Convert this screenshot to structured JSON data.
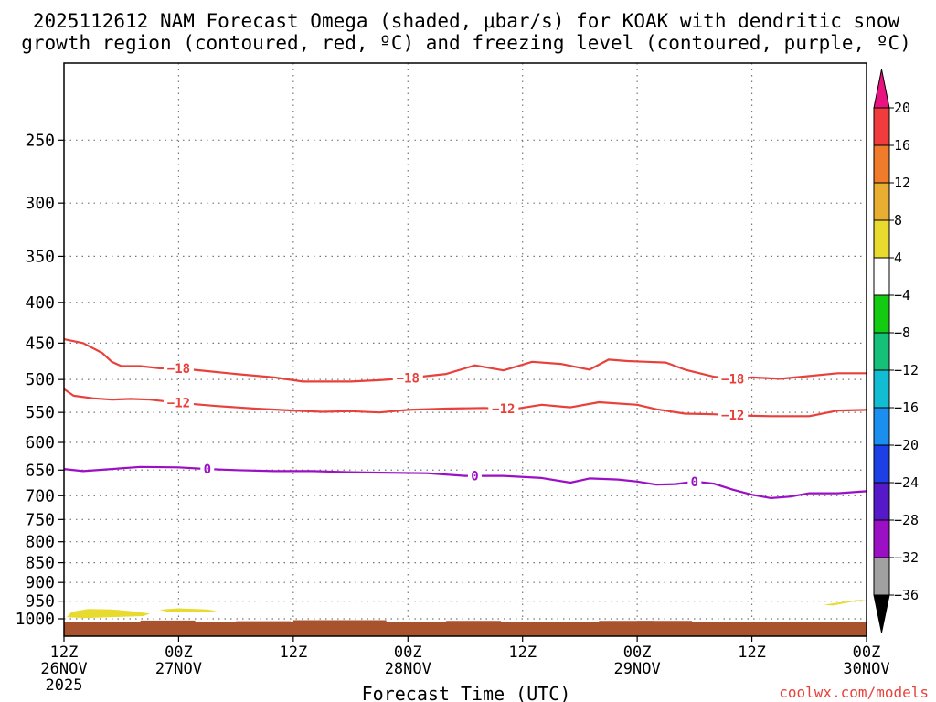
{
  "chart_data": {
    "type": "time-height-contour",
    "title_lines": [
      "2025112612 NAM Forecast Omega (shaded, μbar/s) for KOAK with dendritic snow",
      "growth region (contoured, red, ºC) and freezing level (contoured, purple, ºC)"
    ],
    "xlabel": "Forecast Time (UTC)",
    "credit": "coolwx.com/models",
    "time_range_hours": [
      0,
      84
    ],
    "pressure_range_hpa": [
      1040,
      200
    ],
    "y_ticks": [
      250,
      300,
      350,
      400,
      450,
      500,
      550,
      600,
      650,
      700,
      750,
      800,
      850,
      900,
      950,
      1000
    ],
    "x_ticks": [
      {
        "hour": 0,
        "label": "12Z",
        "date": "26NOV",
        "year": "2025"
      },
      {
        "hour": 12,
        "label": "00Z",
        "date": "27NOV"
      },
      {
        "hour": 24,
        "label": "12Z"
      },
      {
        "hour": 36,
        "label": "00Z",
        "date": "28NOV"
      },
      {
        "hour": 48,
        "label": "12Z"
      },
      {
        "hour": 60,
        "label": "00Z",
        "date": "29NOV"
      },
      {
        "hour": 72,
        "label": "12Z"
      },
      {
        "hour": 84,
        "label": "00Z",
        "date": "30NOV"
      }
    ],
    "contours": [
      {
        "name": "-18",
        "label": "−18",
        "color": "#e8413b",
        "series": "dendritic snow growth region",
        "label_at_hours": [
          12,
          36,
          70
        ],
        "points": [
          [
            0,
            445
          ],
          [
            2,
            450
          ],
          [
            4,
            463
          ],
          [
            5,
            475
          ],
          [
            6,
            481
          ],
          [
            8,
            481
          ],
          [
            10,
            484
          ],
          [
            12,
            484
          ],
          [
            15,
            488
          ],
          [
            18,
            492
          ],
          [
            22,
            497
          ],
          [
            25,
            503
          ],
          [
            28,
            503
          ],
          [
            30,
            503
          ],
          [
            33,
            501
          ],
          [
            36,
            498
          ],
          [
            40,
            492
          ],
          [
            43,
            480
          ],
          [
            46,
            487
          ],
          [
            49,
            475
          ],
          [
            52,
            478
          ],
          [
            55,
            486
          ],
          [
            57,
            472
          ],
          [
            59,
            474
          ],
          [
            61,
            475
          ],
          [
            63,
            476
          ],
          [
            65,
            486
          ],
          [
            68,
            496
          ],
          [
            70,
            499
          ],
          [
            72,
            497
          ],
          [
            75,
            499
          ],
          [
            78,
            495
          ],
          [
            81,
            491
          ],
          [
            84,
            491
          ]
        ]
      },
      {
        "name": "-12",
        "label": "−12",
        "color": "#e8413b",
        "series": "dendritic snow growth region",
        "label_at_hours": [
          12,
          46,
          70
        ],
        "points": [
          [
            0,
            514
          ],
          [
            1,
            524
          ],
          [
            3,
            528
          ],
          [
            5,
            530
          ],
          [
            7,
            529
          ],
          [
            9,
            530
          ],
          [
            12,
            535
          ],
          [
            16,
            540
          ],
          [
            20,
            544
          ],
          [
            24,
            547
          ],
          [
            27,
            549
          ],
          [
            30,
            548
          ],
          [
            33,
            550
          ],
          [
            36,
            546
          ],
          [
            40,
            544
          ],
          [
            44,
            543
          ],
          [
            47,
            545
          ],
          [
            50,
            538
          ],
          [
            53,
            542
          ],
          [
            56,
            534
          ],
          [
            60,
            538
          ],
          [
            62,
            545
          ],
          [
            65,
            552
          ],
          [
            68,
            553
          ],
          [
            71,
            555
          ],
          [
            74,
            556
          ],
          [
            78,
            556
          ],
          [
            81,
            547
          ],
          [
            84,
            546
          ]
        ]
      },
      {
        "name": "0",
        "label": "0",
        "color": "#9b0fc5",
        "series": "freezing level",
        "label_at_hours": [
          15,
          43,
          66
        ],
        "points": [
          [
            0,
            648
          ],
          [
            2,
            652
          ],
          [
            5,
            648
          ],
          [
            8,
            644
          ],
          [
            12,
            645
          ],
          [
            15,
            648
          ],
          [
            18,
            650
          ],
          [
            22,
            652
          ],
          [
            26,
            652
          ],
          [
            30,
            654
          ],
          [
            34,
            655
          ],
          [
            38,
            656
          ],
          [
            42,
            661
          ],
          [
            46,
            661
          ],
          [
            50,
            665
          ],
          [
            53,
            674
          ],
          [
            55,
            666
          ],
          [
            58,
            668
          ],
          [
            60,
            672
          ],
          [
            62,
            678
          ],
          [
            64,
            677
          ],
          [
            66,
            672
          ],
          [
            68,
            676
          ],
          [
            70,
            688
          ],
          [
            72,
            698
          ],
          [
            74,
            705
          ],
          [
            76,
            702
          ],
          [
            78,
            695
          ],
          [
            81,
            695
          ],
          [
            84,
            691
          ]
        ]
      }
    ],
    "shaded_regions": [
      {
        "name": "omega 4-8 μbar/s",
        "color": "#e8db30",
        "blobs": [
          {
            "points": [
              [
                0.3,
                995
              ],
              [
                0.8,
                980
              ],
              [
                2.5,
                972
              ],
              [
                5,
                973
              ],
              [
                7,
                978
              ],
              [
                9,
                985
              ],
              [
                8.3,
                992
              ],
              [
                5,
                995
              ],
              [
                2,
                998
              ]
            ]
          },
          {
            "points": [
              [
                10,
                974
              ],
              [
                12,
                970
              ],
              [
                15,
                973
              ],
              [
                16,
                978
              ],
              [
                14,
                982
              ],
              [
                11,
                981
              ]
            ]
          },
          {
            "points": [
              [
                79.5,
                960
              ],
              [
                81,
                954
              ],
              [
                83,
                947
              ],
              [
                84,
                947
              ],
              [
                82.5,
                952
              ],
              [
                80.5,
                962
              ]
            ]
          }
        ]
      },
      {
        "name": "ground",
        "color": "#a9532e",
        "top_hpa": 1008,
        "bottom_hpa": 1040
      }
    ],
    "colorbar": [
      {
        "label": "20",
        "color": "#e8137e"
      },
      {
        "label": "16",
        "color": "#f23b3d"
      },
      {
        "label": "12",
        "color": "#f07c2b"
      },
      {
        "label": "8",
        "color": "#e8ae32"
      },
      {
        "label": "4",
        "color": "#e9da2f"
      },
      {
        "label": "−4",
        "color": "#ffffff"
      },
      {
        "label": "−8",
        "color": "#13cc12"
      },
      {
        "label": "−12",
        "color": "#15c078"
      },
      {
        "label": "−16",
        "color": "#12bdd3"
      },
      {
        "label": "−20",
        "color": "#1a8ff0"
      },
      {
        "label": "−24",
        "color": "#1c3fe6"
      },
      {
        "label": "−28",
        "color": "#5619c9"
      },
      {
        "label": "−32",
        "color": "#9b0fc5"
      },
      {
        "label": "−36",
        "color": "#a1a1a1"
      },
      {
        "label": "",
        "color": "#000000"
      }
    ]
  }
}
